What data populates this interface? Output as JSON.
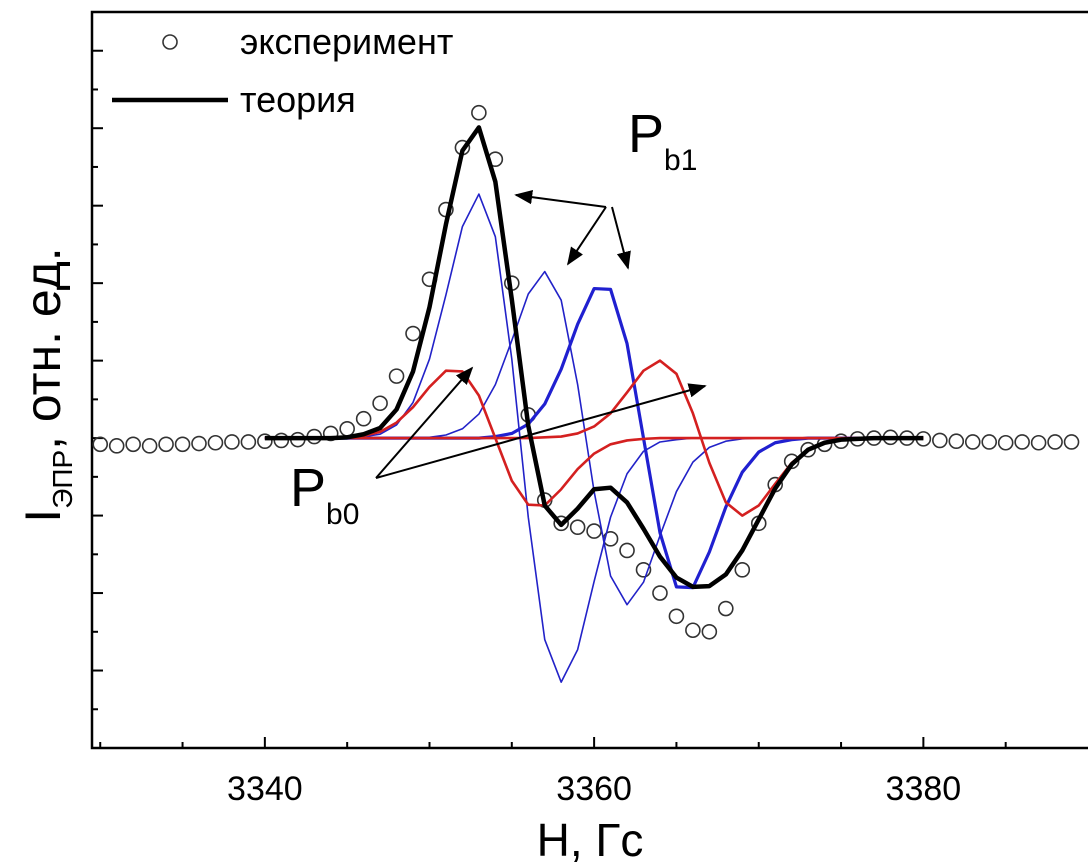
{
  "chart_data": {
    "type": "line",
    "x_label": "H, Гс",
    "y_label": {
      "text": "I",
      "subscript": "ЭПР",
      "suffix": ", отн. ед."
    },
    "annotations": [
      {
        "text": "P",
        "subscript": "b1"
      },
      {
        "text": "P",
        "subscript": "b0"
      }
    ],
    "xlim": [
      3329.5,
      3390
    ],
    "ylim": [
      -4,
      5.5
    ],
    "xticks": [
      3340,
      3360,
      3380
    ],
    "xminorticks": [
      3330,
      3335,
      3345,
      3350,
      3355,
      3365,
      3370,
      3375,
      3385
    ],
    "yticks": [
      -3,
      -2,
      -1,
      0,
      1,
      2,
      3,
      4,
      5
    ],
    "yminorticks": [
      -3.5,
      -2.5,
      -1.5,
      -0.5,
      0.5,
      1.5,
      2.5,
      3.5,
      4.5
    ],
    "legend": "upper left",
    "x": [
      3340,
      3341,
      3342,
      3343,
      3344,
      3345,
      3346,
      3347,
      3348,
      3349,
      3350,
      3351,
      3352,
      3353,
      3354,
      3355,
      3356,
      3357,
      3358,
      3359,
      3360,
      3361,
      3362,
      3363,
      3364,
      3365,
      3366,
      3367,
      3368,
      3369,
      3370,
      3371,
      3372,
      3373,
      3374,
      3375,
      3376,
      3377,
      3378,
      3379,
      3380
    ],
    "series": [
      {
        "name": "эксперимент",
        "style": "markers",
        "color": "#333333",
        "x": [
          3330,
          3331,
          3332,
          3333,
          3334,
          3335,
          3336,
          3337,
          3338,
          3339,
          3340,
          3341,
          3342,
          3343,
          3344,
          3345,
          3346,
          3347,
          3348,
          3349,
          3350,
          3351,
          3352,
          3353,
          3354,
          3355,
          3356,
          3357,
          3358,
          3359,
          3360,
          3361,
          3362,
          3363,
          3364,
          3365,
          3366,
          3367,
          3368,
          3369,
          3370,
          3371,
          3372,
          3373,
          3374,
          3375,
          3376,
          3377,
          3378,
          3379,
          3380,
          3381,
          3382,
          3383,
          3384,
          3385,
          3386,
          3387,
          3388,
          3389
        ],
        "values": [
          -0.08,
          -0.1,
          -0.08,
          -0.1,
          -0.08,
          -0.08,
          -0.07,
          -0.06,
          -0.05,
          -0.05,
          -0.04,
          -0.03,
          -0.02,
          0.02,
          0.06,
          0.12,
          0.25,
          0.45,
          0.8,
          1.35,
          2.05,
          2.95,
          3.75,
          4.2,
          3.6,
          2.0,
          0.3,
          -0.8,
          -1.1,
          -1.15,
          -1.2,
          -1.3,
          -1.45,
          -1.7,
          -2.0,
          -2.3,
          -2.48,
          -2.5,
          -2.2,
          -1.7,
          -1.1,
          -0.6,
          -0.3,
          -0.15,
          -0.08,
          -0.04,
          -0.01,
          0,
          0.01,
          0,
          -0.01,
          -0.03,
          -0.04,
          -0.05,
          -0.05,
          -0.06,
          -0.05,
          -0.06,
          -0.05,
          -0.05
        ]
      },
      {
        "style": "line",
        "color": "#2222c8",
        "width": 1.6,
        "values": [
          0,
          0,
          0,
          0,
          0,
          0,
          0.02,
          0.05,
          0.17,
          0.46,
          1.02,
          1.85,
          2.73,
          3.15,
          2.6,
          1.02,
          -1.02,
          -2.6,
          -3.15,
          -2.73,
          -1.85,
          -1.02,
          -0.46,
          -0.17,
          -0.05,
          -0.02,
          0,
          0,
          0,
          0,
          0,
          0,
          0,
          0,
          0,
          0,
          0,
          0,
          0,
          0,
          0
        ]
      },
      {
        "style": "line",
        "color": "#2222c8",
        "width": 1.6,
        "values": [
          0,
          0,
          0,
          0,
          0,
          0,
          0,
          0,
          0,
          0,
          0.01,
          0.04,
          0.12,
          0.31,
          0.69,
          1.26,
          1.86,
          2.15,
          1.78,
          0.69,
          -0.69,
          -1.78,
          -2.15,
          -1.86,
          -1.26,
          -0.69,
          -0.31,
          -0.12,
          -0.04,
          -0.01,
          0,
          0,
          0,
          0,
          0,
          0,
          0,
          0,
          0,
          0,
          0
        ]
      },
      {
        "style": "line",
        "color": "#2020d0",
        "width": 3.2,
        "values": [
          0,
          0,
          0,
          0,
          0,
          0,
          0,
          0,
          0,
          0,
          0,
          0,
          0,
          0,
          0.02,
          0.06,
          0.18,
          0.44,
          0.89,
          1.47,
          1.93,
          1.92,
          1.22,
          0,
          -1.22,
          -1.92,
          -1.93,
          -1.47,
          -0.89,
          -0.44,
          -0.18,
          -0.06,
          -0.02,
          0,
          0,
          0,
          0,
          0,
          0,
          0,
          0
        ]
      },
      {
        "style": "line",
        "color": "#d42020",
        "width": 2.6,
        "values": [
          0,
          0,
          0,
          0,
          0,
          0.01,
          0.03,
          0.08,
          0.2,
          0.4,
          0.66,
          0.87,
          0.86,
          0.55,
          0,
          -0.55,
          -0.86,
          -0.87,
          -0.66,
          -0.4,
          -0.2,
          -0.08,
          -0.03,
          -0.01,
          0,
          0,
          0,
          0,
          0,
          0,
          0,
          0,
          0,
          0,
          0,
          0,
          0,
          0,
          0,
          0,
          0
        ]
      },
      {
        "style": "line",
        "color": "#d42020",
        "width": 2.6,
        "values": [
          0,
          0,
          0,
          0,
          0,
          0,
          0,
          0,
          0,
          0,
          0,
          0,
          0,
          0,
          0,
          0,
          0,
          0.01,
          0.02,
          0.06,
          0.15,
          0.32,
          0.59,
          0.87,
          1,
          0.83,
          0.32,
          -0.32,
          -0.83,
          -1,
          -0.87,
          -0.59,
          -0.32,
          -0.15,
          -0.06,
          -0.02,
          -0.01,
          0,
          0,
          0,
          0
        ]
      },
      {
        "name": "теория",
        "style": "line",
        "color": "#000000",
        "width": 4.5,
        "values": [
          0,
          0,
          0,
          0,
          0,
          0.01,
          0.05,
          0.13,
          0.37,
          0.86,
          1.69,
          2.76,
          3.71,
          4.01,
          3.31,
          1.79,
          0.16,
          -0.87,
          -1.12,
          -0.91,
          -0.66,
          -0.64,
          -0.83,
          -1.17,
          -1.53,
          -1.8,
          -1.92,
          -1.91,
          -1.76,
          -1.45,
          -1.05,
          -0.65,
          -0.34,
          -0.15,
          -0.06,
          -0.02,
          -0.01,
          0,
          0,
          0,
          0
        ]
      }
    ]
  }
}
